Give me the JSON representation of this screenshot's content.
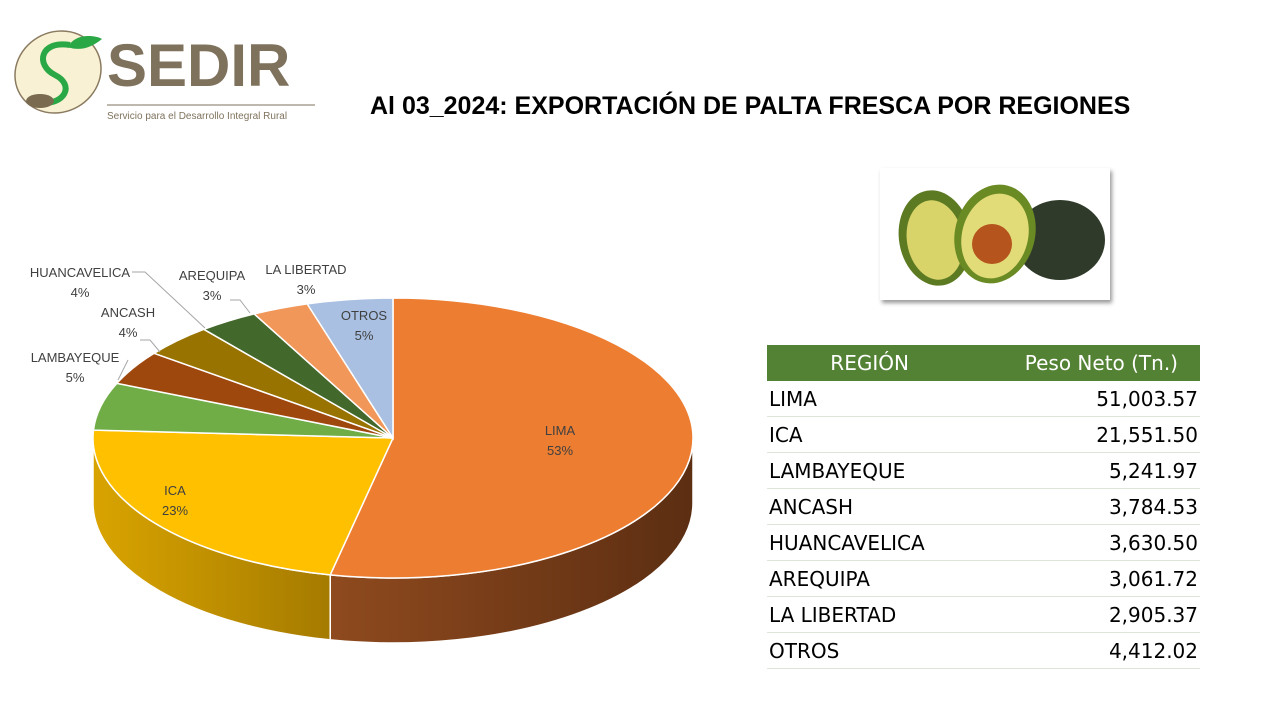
{
  "logo": {
    "name": "SEDIR",
    "subtitle": "Servicio para el Desarrollo Integral Rural"
  },
  "title": "Al 03_2024: EXPORTACIÓN DE PALTA FRESCA POR REGIONES",
  "table": {
    "headers": [
      "REGIÓN",
      "Peso Neto (Tn.)"
    ],
    "rows": [
      [
        "LIMA",
        "51,003.57"
      ],
      [
        "ICA",
        "21,551.50"
      ],
      [
        "LAMBAYEQUE",
        "5,241.97"
      ],
      [
        "ANCASH",
        "3,784.53"
      ],
      [
        "HUANCAVELICA",
        "3,630.50"
      ],
      [
        "AREQUIPA",
        "3,061.72"
      ],
      [
        "LA LIBERTAD",
        "2,905.37"
      ],
      [
        "OTROS",
        "4,412.02"
      ]
    ]
  },
  "chart_data": {
    "type": "pie",
    "title": "",
    "three_d": true,
    "categories": [
      "LIMA",
      "ICA",
      "LAMBAYEQUE",
      "ANCASH",
      "HUANCAVELICA",
      "AREQUIPA",
      "LA LIBERTAD",
      "OTROS"
    ],
    "values": [
      51003.57,
      21551.5,
      5241.97,
      3784.53,
      3630.5,
      3061.72,
      2905.37,
      4412.02
    ],
    "labels": [
      "53%",
      "23%",
      "5%",
      "4%",
      "4%",
      "3%",
      "3%",
      "5%"
    ],
    "colors": [
      "#ED7D31",
      "#FFC000",
      "#70AD47",
      "#9E480E",
      "#997300",
      "#43682B",
      "#F1975A",
      "#A9C0E2"
    ]
  }
}
